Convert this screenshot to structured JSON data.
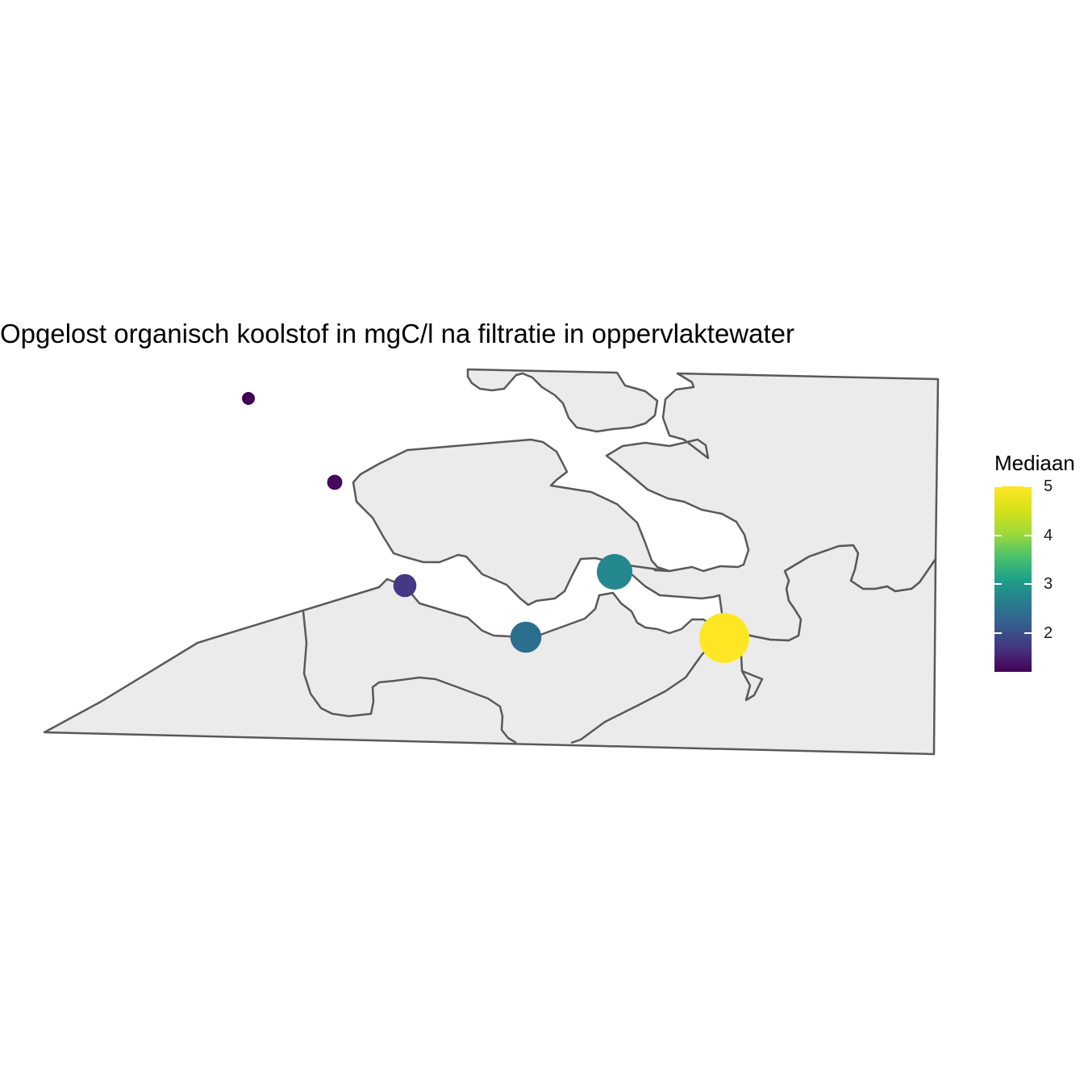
{
  "map": {
    "title": "Opgelost organisch koolstof in mgC/l na filtratie in oppervlaktewater",
    "land_fill": "#ebebeb",
    "land_stroke": "#595959"
  },
  "legend": {
    "title": "Mediaan",
    "min": 1.2,
    "max": 5,
    "ticks": [
      {
        "value": 2,
        "label": "2"
      },
      {
        "value": 3,
        "label": "3"
      },
      {
        "value": 4,
        "label": "4"
      },
      {
        "value": 5,
        "label": "5"
      }
    ],
    "palette": [
      "#440154",
      "#46327e",
      "#365c8d",
      "#277f8e",
      "#1fa187",
      "#4ac16d",
      "#a0da39",
      "#d8e219",
      "#fde725"
    ]
  },
  "chart_data": {
    "type": "scatter",
    "title": "Opgelost organisch koolstof in mgC/l na filtratie in oppervlaktewater",
    "color_legend": "Mediaan",
    "size_encodes": "Mediaan",
    "points": [
      {
        "value": 1.2,
        "color": "#440154"
      },
      {
        "value": 1.3,
        "color": "#46085c"
      },
      {
        "value": 1.8,
        "color": "#443a83"
      },
      {
        "value": 2.5,
        "color": "#2c6e8e"
      },
      {
        "value": 3.0,
        "color": "#25878e"
      },
      {
        "value": 5.0,
        "color": "#fde725"
      }
    ]
  }
}
